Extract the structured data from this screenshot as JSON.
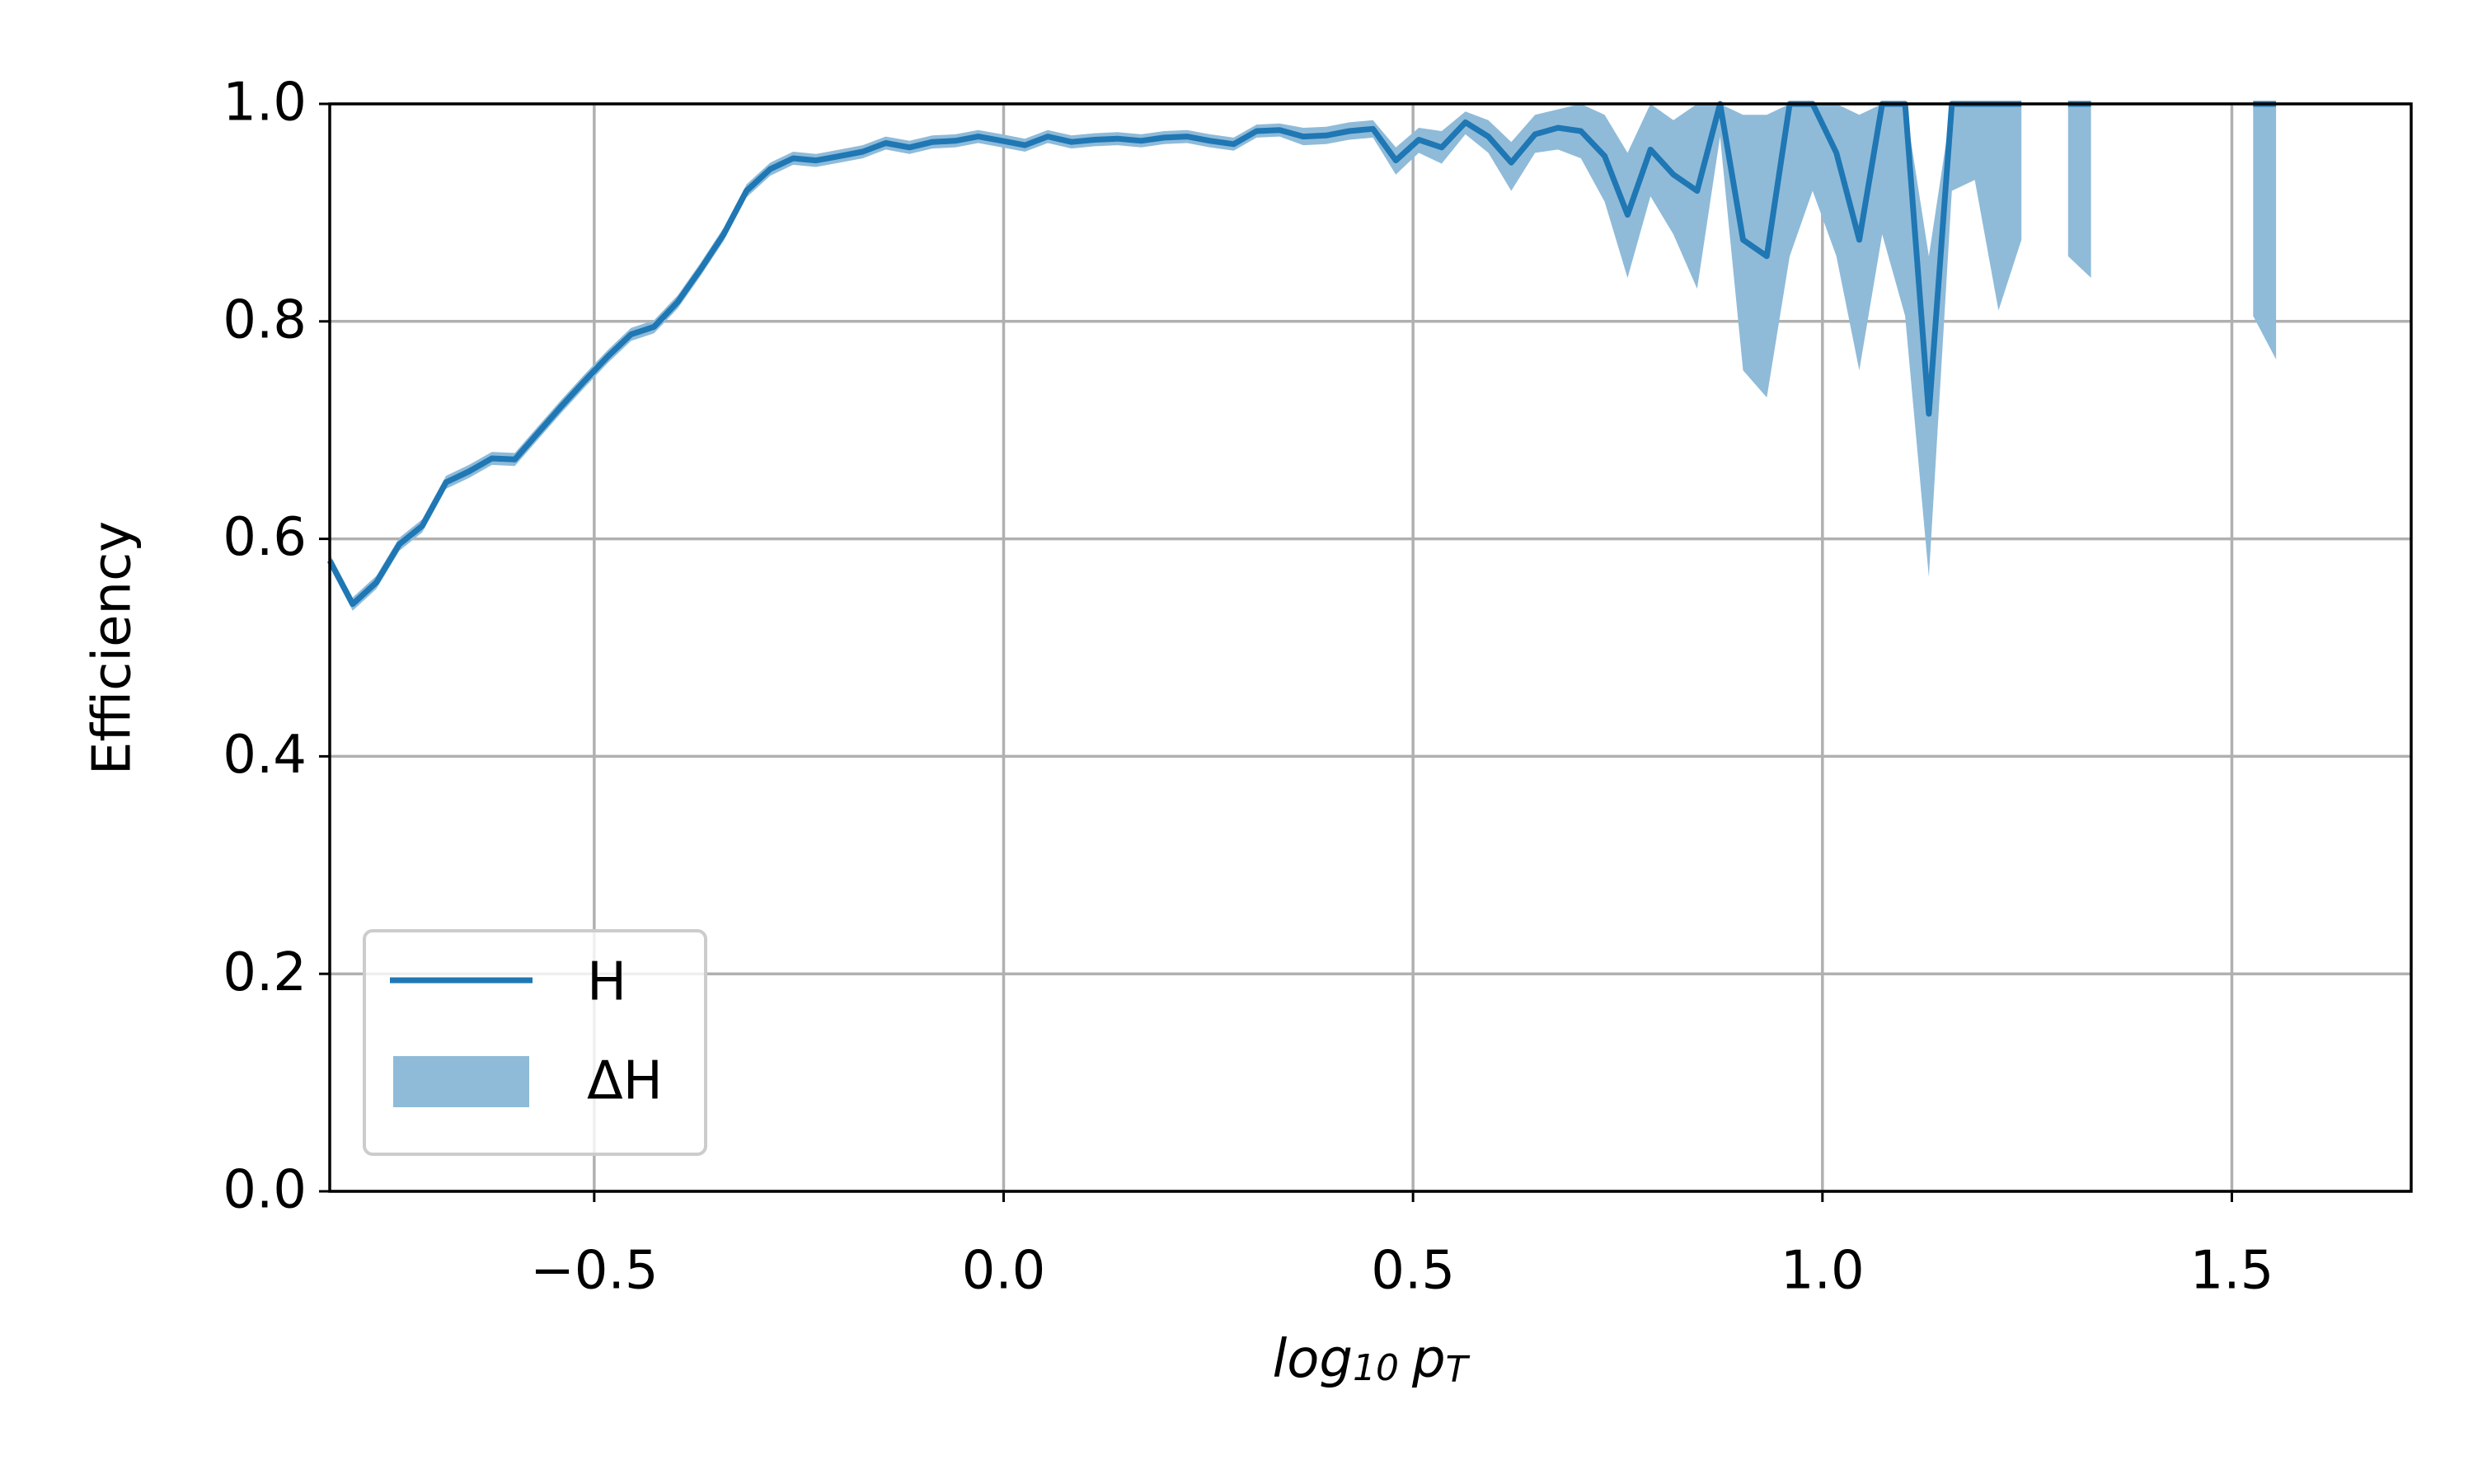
{
  "chart_data": {
    "type": "line",
    "ylabel": "Efficiency",
    "xlabel": [
      "log",
      "10",
      "p",
      "T"
    ],
    "xlim": [
      -0.823,
      1.719
    ],
    "ylim": [
      0,
      1
    ],
    "xticks": [
      {
        "value": -0.5,
        "label": "−0.5"
      },
      {
        "value": 0,
        "label": "0.0"
      },
      0.5,
      {
        "value": 1,
        "label": "1.0"
      },
      1.5
    ],
    "yticks": [
      {
        "value": 0,
        "label": "0.0"
      },
      0.2,
      0.4,
      0.6,
      0.8,
      {
        "value": 1,
        "label": "1.0"
      }
    ],
    "grid": true,
    "legend": "lower left",
    "x": [
      -0.823,
      -0.795,
      -0.766,
      -0.738,
      -0.71,
      -0.681,
      -0.653,
      -0.625,
      -0.597,
      -0.568,
      -0.54,
      -0.512,
      -0.483,
      -0.455,
      -0.427,
      -0.398,
      -0.37,
      -0.342,
      -0.314,
      -0.285,
      -0.257,
      -0.229,
      -0.2,
      -0.172,
      -0.144,
      -0.115,
      -0.087,
      -0.059,
      -0.031,
      -0.002,
      0.026,
      0.054,
      0.083,
      0.111,
      0.139,
      0.168,
      0.196,
      0.224,
      0.252,
      0.281,
      0.309,
      0.337,
      0.366,
      0.394,
      0.422,
      0.451,
      0.479,
      0.507,
      0.535,
      0.564,
      0.592,
      0.62,
      0.649,
      0.677,
      0.705,
      0.734,
      0.762,
      0.79,
      0.818,
      0.847,
      0.875,
      0.903,
      0.932,
      0.96,
      0.988,
      1.017,
      1.045,
      1.073,
      1.101,
      1.13,
      1.158,
      1.186,
      1.215,
      1.243,
      1.271,
      1.3,
      1.328,
      1.356,
      1.384,
      1.413,
      1.441,
      1.469,
      1.498,
      1.526,
      1.554
    ],
    "series": [
      {
        "name": "H",
        "color": "#1f77b4",
        "values": [
          0.58,
          0.54,
          0.56,
          0.595,
          0.612,
          0.652,
          0.662,
          0.674,
          0.673,
          0.698,
          0.722,
          0.745,
          0.768,
          0.788,
          0.795,
          0.818,
          0.848,
          0.88,
          0.92,
          0.94,
          0.95,
          0.948,
          0.952,
          0.956,
          0.964,
          0.96,
          0.965,
          0.966,
          0.97,
          0.966,
          0.962,
          0.97,
          0.965,
          0.967,
          0.968,
          0.966,
          0.969,
          0.97,
          0.966,
          0.963,
          0.975,
          0.976,
          0.97,
          0.971,
          0.975,
          0.977,
          0.948,
          0.967,
          0.96,
          0.983,
          0.97,
          0.946,
          0.972,
          0.978,
          0.975,
          0.952,
          0.898,
          0.958,
          0.935,
          0.92,
          1.0,
          0.875,
          0.86,
          1.0,
          1.0,
          0.955,
          0.875,
          1.0,
          1.0,
          0.715,
          1.0,
          1.0,
          1.0,
          1.0,
          null,
          1.0,
          1.0,
          null,
          null,
          null,
          null,
          null,
          null,
          1.0,
          1.0
        ]
      }
    ],
    "band": {
      "name": "ΔH",
      "color": "#8fbbd9",
      "lower": [
        0.574,
        0.534,
        0.554,
        0.589,
        0.606,
        0.646,
        0.656,
        0.668,
        0.667,
        0.692,
        0.716,
        0.739,
        0.762,
        0.782,
        0.789,
        0.812,
        0.842,
        0.874,
        0.914,
        0.934,
        0.944,
        0.942,
        0.946,
        0.95,
        0.958,
        0.954,
        0.959,
        0.96,
        0.964,
        0.96,
        0.956,
        0.964,
        0.959,
        0.961,
        0.962,
        0.96,
        0.963,
        0.964,
        0.96,
        0.957,
        0.969,
        0.97,
        0.962,
        0.963,
        0.967,
        0.969,
        0.935,
        0.955,
        0.945,
        0.972,
        0.955,
        0.92,
        0.955,
        0.958,
        0.95,
        0.91,
        0.84,
        0.915,
        0.88,
        0.83,
        0.97,
        0.755,
        0.73,
        0.86,
        0.92,
        0.86,
        0.755,
        0.88,
        0.805,
        0.565,
        0.92,
        0.93,
        0.81,
        0.875,
        null,
        0.86,
        0.84,
        null,
        null,
        null,
        null,
        null,
        null,
        0.805,
        0.765
      ],
      "upper": [
        0.586,
        0.546,
        0.566,
        0.601,
        0.618,
        0.658,
        0.668,
        0.68,
        0.679,
        0.704,
        0.728,
        0.751,
        0.774,
        0.794,
        0.801,
        0.824,
        0.854,
        0.886,
        0.926,
        0.946,
        0.956,
        0.954,
        0.958,
        0.962,
        0.97,
        0.966,
        0.971,
        0.972,
        0.976,
        0.972,
        0.968,
        0.976,
        0.971,
        0.973,
        0.974,
        0.972,
        0.975,
        0.976,
        0.972,
        0.969,
        0.981,
        0.982,
        0.978,
        0.979,
        0.983,
        0.985,
        0.96,
        0.978,
        0.975,
        0.993,
        0.985,
        0.965,
        0.99,
        0.995,
        1.0,
        0.99,
        0.955,
        1.0,
        0.985,
        1.0,
        1.0,
        0.99,
        0.99,
        1.0,
        1.0,
        1.0,
        0.99,
        1.0,
        1.0,
        0.86,
        1.0,
        1.0,
        1.0,
        1.0,
        null,
        1.0,
        1.0,
        null,
        null,
        null,
        null,
        null,
        null,
        1.0,
        1.0
      ]
    }
  }
}
